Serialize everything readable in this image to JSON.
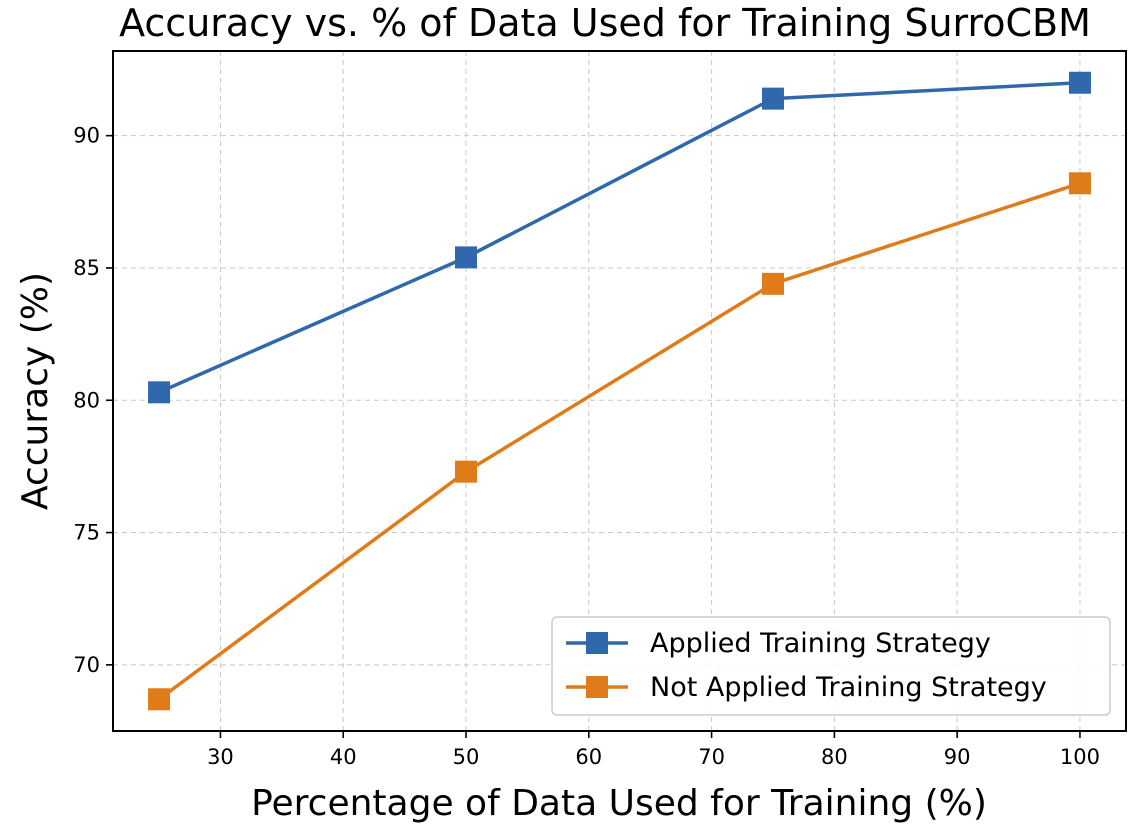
{
  "chart_data": {
    "type": "line",
    "title": "Accuracy vs. % of Data Used for Training SurroCBM",
    "xlabel": "Percentage of Data Used for Training (%)",
    "ylabel": "Accuracy (%)",
    "xlim": [
      21.25,
      103.75
    ],
    "ylim": [
      67.5,
      93.2
    ],
    "xticks": [
      30,
      40,
      50,
      60,
      70,
      80,
      90,
      100
    ],
    "yticks": [
      70,
      75,
      80,
      85,
      90
    ],
    "grid": true,
    "legend_position": "lower-right",
    "x": [
      25,
      50,
      75,
      100
    ],
    "series": [
      {
        "name": "Applied Training Strategy",
        "values": [
          80.3,
          85.4,
          91.4,
          92.0
        ],
        "color": "#3068ad",
        "marker": "square"
      },
      {
        "name": "Not Applied Training Strategy",
        "values": [
          68.7,
          77.3,
          84.4,
          88.2
        ],
        "color": "#e07b1a",
        "marker": "square"
      }
    ]
  }
}
